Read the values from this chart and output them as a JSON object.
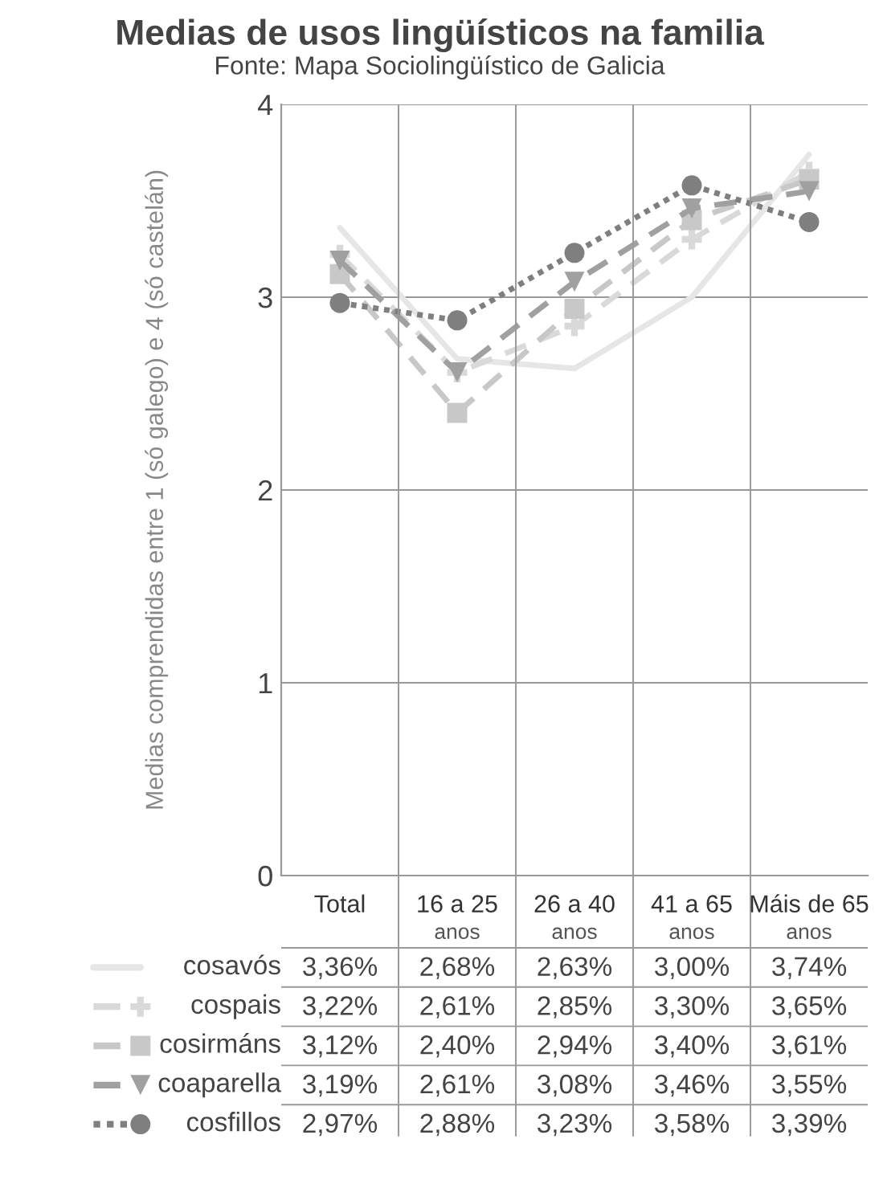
{
  "chart_data": {
    "type": "line",
    "title": "Medias de usos lingüísticos na familia",
    "subtitle": "Fonte: Mapa Sociolingüístico de Galicia",
    "ylabel": "Medias comprendidas entre 1 (só galego) e 4 (só castelán)",
    "categories": [
      "Total",
      "16 a 25\nanos",
      "26 a 40\nanos",
      "41 a 65\nanos",
      "Máis de 65\nanos"
    ],
    "ylim": [
      0,
      4
    ],
    "yticks": [
      0,
      1,
      2,
      3,
      4
    ],
    "grid": true,
    "legend": "bottom left",
    "series": [
      {
        "name": "cosavós",
        "color": "#e6e6e6",
        "marker": "none",
        "line_style": "solid",
        "values": [
          3.36,
          2.68,
          2.63,
          3.0,
          3.74
        ],
        "value_labels": [
          "3,36%",
          "2,68%",
          "2,63%",
          "3,00%",
          "3,74%"
        ]
      },
      {
        "name": "cospais",
        "color": "#d9d9d9",
        "marker": "cross",
        "line_style": "dashed",
        "values": [
          3.22,
          2.61,
          2.85,
          3.3,
          3.65
        ],
        "value_labels": [
          "3,22%",
          "2,61%",
          "2,85%",
          "3,30%",
          "3,65%"
        ]
      },
      {
        "name": "cosirmáns",
        "color": "#c8c8c8",
        "marker": "square",
        "line_style": "dashed",
        "values": [
          3.12,
          2.4,
          2.94,
          3.4,
          3.61
        ],
        "value_labels": [
          "3,12%",
          "2,40%",
          "2,94%",
          "3,40%",
          "3,61%"
        ]
      },
      {
        "name": "coaparella",
        "color": "#a0a0a0",
        "marker": "triangle",
        "line_style": "dashed",
        "values": [
          3.19,
          2.61,
          3.08,
          3.46,
          3.55
        ],
        "value_labels": [
          "3,19%",
          "2,61%",
          "3,08%",
          "3,46%",
          "3,55%"
        ]
      },
      {
        "name": "cosfillos",
        "color": "#7f7f7f",
        "marker": "circle",
        "line_style": "dotted",
        "values": [
          2.97,
          2.88,
          3.23,
          3.58,
          3.39
        ],
        "value_labels": [
          "2,97%",
          "2,88%",
          "3,23%",
          "3,58%",
          "3,39%"
        ]
      }
    ]
  }
}
